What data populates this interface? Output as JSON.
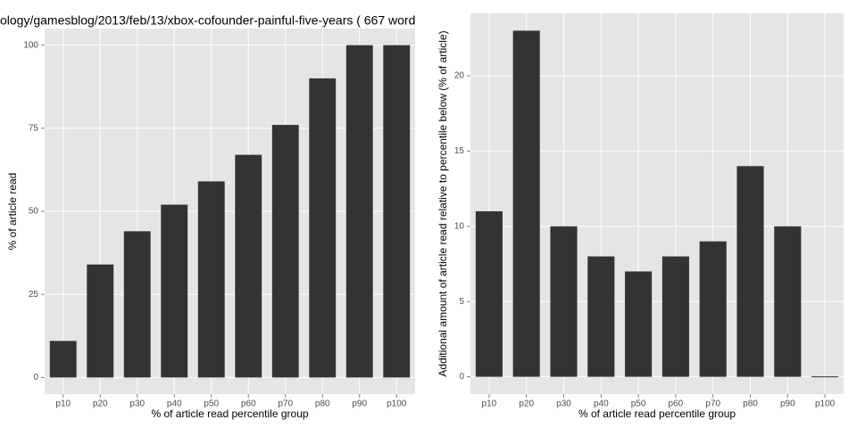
{
  "chart_data": [
    {
      "type": "bar",
      "title": "ology/gamesblog/2013/feb/13/xbox-cofounder-painful-five-years ( 667 word",
      "x_label": "% of article read percentile group",
      "y_label": "% of article read",
      "categories": [
        "p10",
        "p20",
        "p30",
        "p40",
        "p50",
        "p60",
        "p70",
        "p80",
        "p90",
        "p100"
      ],
      "values": [
        11,
        34,
        44,
        52,
        59,
        67,
        76,
        90,
        100,
        100
      ],
      "color": "#333333",
      "ylim": [
        -5,
        105
      ],
      "yticks": [
        0,
        25,
        50,
        75,
        100
      ],
      "grid": true
    },
    {
      "type": "bar",
      "x_label": "% of article read percentile group",
      "y_label": "Additional amount of article read relative to percentile below (% of article)",
      "categories": [
        "p10",
        "p20",
        "p30",
        "p40",
        "p50",
        "p60",
        "p70",
        "p80",
        "p90",
        "p100"
      ],
      "values": [
        11,
        23,
        10,
        8,
        7,
        8,
        9,
        14,
        10,
        0
      ],
      "color": "#333333",
      "ylim": [
        -1.15,
        24.15
      ],
      "yticks": [
        0,
        5,
        10,
        15,
        20
      ],
      "grid": true
    }
  ]
}
